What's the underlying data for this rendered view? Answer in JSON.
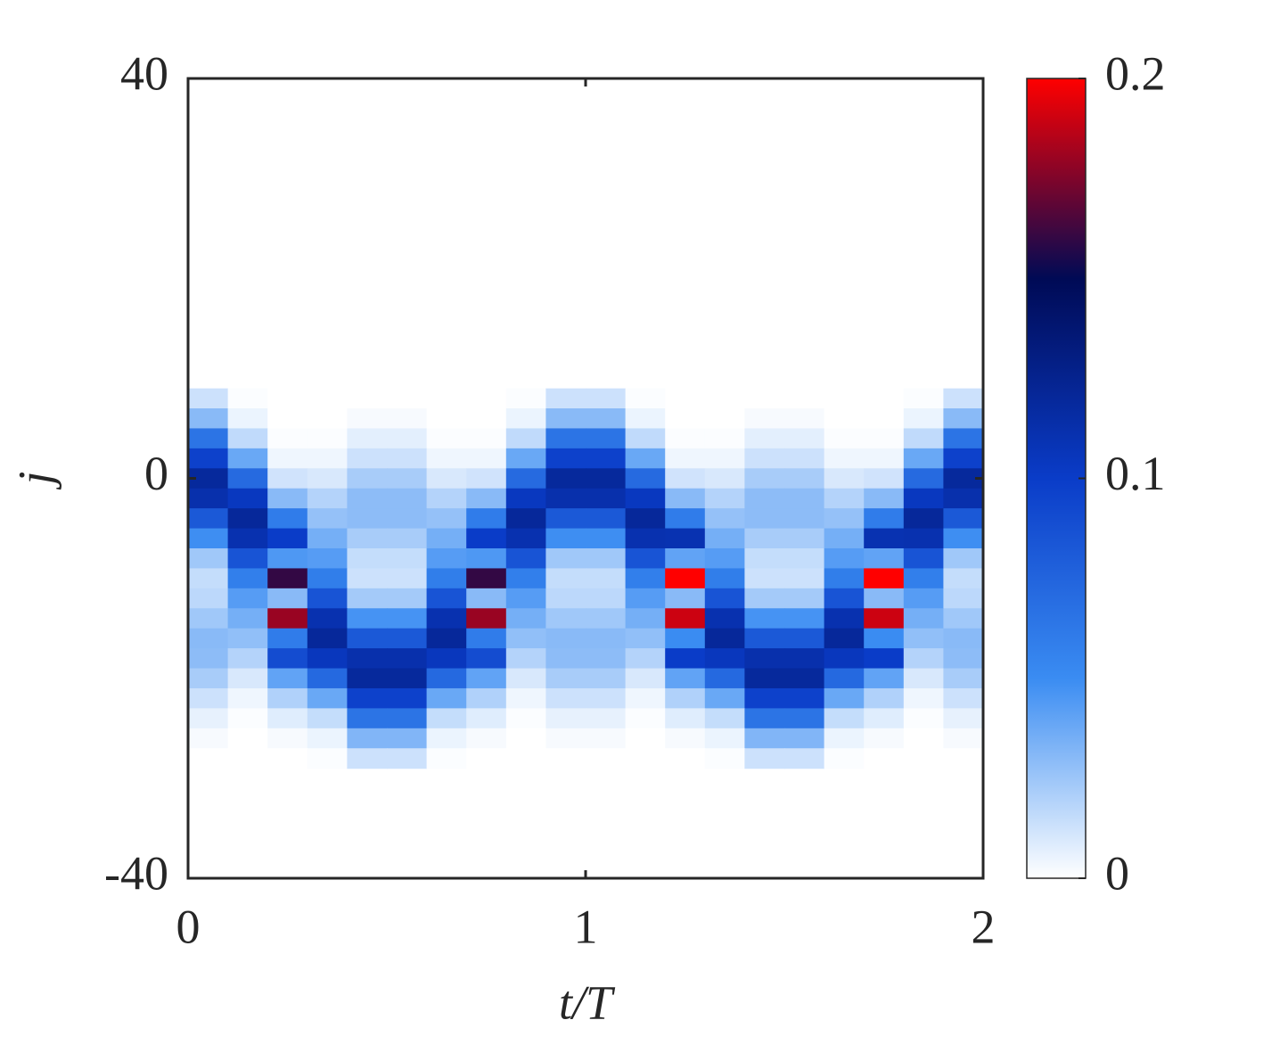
{
  "chart_data": {
    "type": "heatmap",
    "xlabel": "t/T",
    "ylabel": "j",
    "x": [
      0.05,
      0.15,
      0.25,
      0.35,
      0.45,
      0.55,
      0.65,
      0.75,
      0.85,
      0.95,
      1.05,
      1.15,
      1.25,
      1.35,
      1.45,
      1.55,
      1.65,
      1.75,
      1.85,
      1.95
    ],
    "y": [
      8,
      6,
      4,
      2,
      0,
      -2,
      -4,
      -6,
      -8,
      -10,
      -12,
      -14,
      -16,
      -18,
      -20,
      -22,
      -24,
      -26,
      -28
    ],
    "values": [
      [
        0.013,
        0.001,
        0,
        0,
        0,
        0,
        0,
        0,
        0.001,
        0.013,
        0.013,
        0.001,
        0,
        0,
        0,
        0,
        0,
        0,
        0.001,
        0.013
      ],
      [
        0.03,
        0.005,
        0,
        0,
        0.002,
        0.002,
        0,
        0,
        0.005,
        0.03,
        0.03,
        0.005,
        0,
        0,
        0.002,
        0.002,
        0,
        0,
        0.005,
        0.03
      ],
      [
        0.065,
        0.016,
        0.001,
        0.001,
        0.007,
        0.007,
        0.001,
        0.001,
        0.016,
        0.065,
        0.065,
        0.016,
        0.001,
        0.001,
        0.007,
        0.007,
        0.001,
        0.001,
        0.016,
        0.065
      ],
      [
        0.097,
        0.038,
        0.004,
        0.004,
        0.013,
        0.013,
        0.004,
        0.004,
        0.038,
        0.097,
        0.097,
        0.038,
        0.004,
        0.004,
        0.013,
        0.013,
        0.004,
        0.004,
        0.038,
        0.097
      ],
      [
        0.119,
        0.071,
        0.012,
        0.01,
        0.022,
        0.022,
        0.01,
        0.012,
        0.071,
        0.119,
        0.119,
        0.071,
        0.012,
        0.01,
        0.022,
        0.022,
        0.01,
        0.012,
        0.071,
        0.119
      ],
      [
        0.112,
        0.104,
        0.03,
        0.019,
        0.029,
        0.029,
        0.019,
        0.03,
        0.104,
        0.112,
        0.112,
        0.104,
        0.03,
        0.019,
        0.029,
        0.029,
        0.019,
        0.03,
        0.104,
        0.112
      ],
      [
        0.082,
        0.12,
        0.06,
        0.027,
        0.029,
        0.029,
        0.027,
        0.06,
        0.12,
        0.082,
        0.082,
        0.12,
        0.06,
        0.027,
        0.029,
        0.029,
        0.027,
        0.06,
        0.12,
        0.082
      ],
      [
        0.049,
        0.111,
        0.1,
        0.035,
        0.022,
        0.022,
        0.035,
        0.1,
        0.111,
        0.049,
        0.049,
        0.111,
        0.11,
        0.035,
        0.022,
        0.022,
        0.035,
        0.11,
        0.111,
        0.049
      ],
      [
        0.024,
        0.085,
        0.045,
        0.043,
        0.015,
        0.015,
        0.043,
        0.045,
        0.085,
        0.024,
        0.024,
        0.085,
        0.04,
        0.043,
        0.015,
        0.015,
        0.043,
        0.04,
        0.085,
        0.024
      ],
      [
        0.015,
        0.058,
        0.16,
        0.059,
        0.013,
        0.013,
        0.059,
        0.16,
        0.058,
        0.015,
        0.015,
        0.058,
        0.2,
        0.059,
        0.013,
        0.013,
        0.059,
        0.2,
        0.058,
        0.015
      ],
      [
        0.017,
        0.043,
        0.03,
        0.085,
        0.023,
        0.023,
        0.085,
        0.03,
        0.043,
        0.017,
        0.017,
        0.043,
        0.03,
        0.085,
        0.023,
        0.023,
        0.085,
        0.03,
        0.043,
        0.017
      ],
      [
        0.024,
        0.035,
        0.18,
        0.111,
        0.047,
        0.047,
        0.111,
        0.18,
        0.035,
        0.024,
        0.024,
        0.035,
        0.19,
        0.111,
        0.047,
        0.047,
        0.111,
        0.19,
        0.035,
        0.024
      ],
      [
        0.03,
        0.028,
        0.06,
        0.12,
        0.082,
        0.082,
        0.12,
        0.06,
        0.028,
        0.03,
        0.03,
        0.028,
        0.05,
        0.12,
        0.082,
        0.082,
        0.12,
        0.05,
        0.028,
        0.03
      ],
      [
        0.029,
        0.019,
        0.09,
        0.105,
        0.112,
        0.112,
        0.105,
        0.09,
        0.019,
        0.029,
        0.029,
        0.019,
        0.1,
        0.105,
        0.112,
        0.112,
        0.105,
        0.1,
        0.019,
        0.029
      ],
      [
        0.022,
        0.01,
        0.04,
        0.072,
        0.119,
        0.119,
        0.072,
        0.04,
        0.01,
        0.022,
        0.022,
        0.01,
        0.04,
        0.072,
        0.119,
        0.119,
        0.072,
        0.04,
        0.01,
        0.022
      ],
      [
        0.013,
        0.004,
        0.02,
        0.038,
        0.097,
        0.097,
        0.038,
        0.02,
        0.004,
        0.013,
        0.013,
        0.004,
        0.02,
        0.038,
        0.097,
        0.097,
        0.038,
        0.02,
        0.004,
        0.013
      ],
      [
        0.006,
        0.001,
        0.008,
        0.015,
        0.065,
        0.065,
        0.015,
        0.008,
        0.001,
        0.006,
        0.006,
        0.001,
        0.008,
        0.015,
        0.065,
        0.065,
        0.015,
        0.008,
        0.001,
        0.006
      ],
      [
        0.002,
        0,
        0.002,
        0.005,
        0.032,
        0.032,
        0.005,
        0.002,
        0,
        0.002,
        0.002,
        0,
        0.002,
        0.005,
        0.032,
        0.032,
        0.005,
        0.002,
        0,
        0.002
      ],
      [
        0,
        0,
        0,
        0.001,
        0.013,
        0.013,
        0.001,
        0,
        0,
        0,
        0,
        0,
        0,
        0.001,
        0.013,
        0.013,
        0.001,
        0,
        0,
        0
      ]
    ],
    "xlim": [
      0,
      2
    ],
    "xticks": [
      0,
      1,
      2
    ],
    "ylim": [
      -40,
      40
    ],
    "yticks": [
      -40,
      0,
      40
    ],
    "clim": [
      0,
      0.2
    ],
    "cticks": [
      0,
      0.1,
      0.2
    ],
    "colormap": [
      "#ffffff",
      "#3a8cf2",
      "#0a3cc8",
      "#000a55",
      "#ff0000"
    ]
  }
}
